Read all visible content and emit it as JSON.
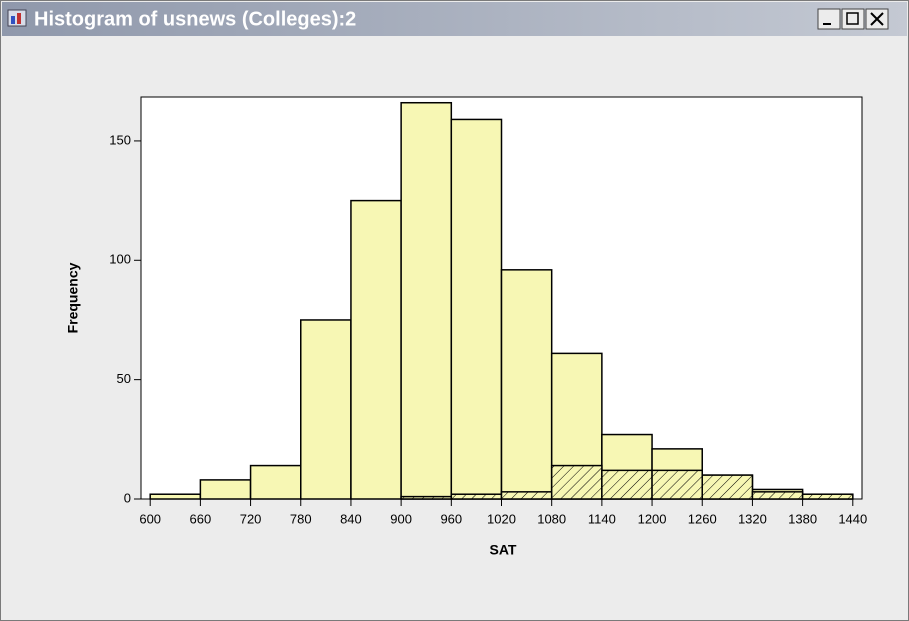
{
  "window": {
    "title": "Histogram of usnews (Colleges):2"
  },
  "chart_data": {
    "type": "histogram",
    "x_label": "SAT",
    "y_label": "Frequency",
    "bins": [
      600,
      660,
      720,
      780,
      840,
      900,
      960,
      1020,
      1080,
      1140,
      1200,
      1260,
      1320,
      1380,
      1440
    ],
    "series": [
      {
        "color": "#f7f7b4",
        "values": [
          2,
          8,
          14,
          75,
          125,
          166,
          159,
          96,
          61,
          27,
          21,
          10,
          4,
          2
        ]
      },
      {
        "color": "#f7f7b4",
        "hatch": true,
        "values": [
          0,
          0,
          0,
          0,
          0,
          1,
          2,
          3,
          14,
          12,
          12,
          10,
          3,
          2
        ]
      }
    ],
    "xlim": [
      589,
      1451
    ],
    "ylim": [
      0,
      168.4
    ],
    "xticks": [
      600,
      660,
      720,
      780,
      840,
      900,
      960,
      1020,
      1080,
      1140,
      1200,
      1260,
      1320,
      1380,
      1440
    ],
    "yticks": [
      0,
      50,
      100,
      150
    ]
  }
}
